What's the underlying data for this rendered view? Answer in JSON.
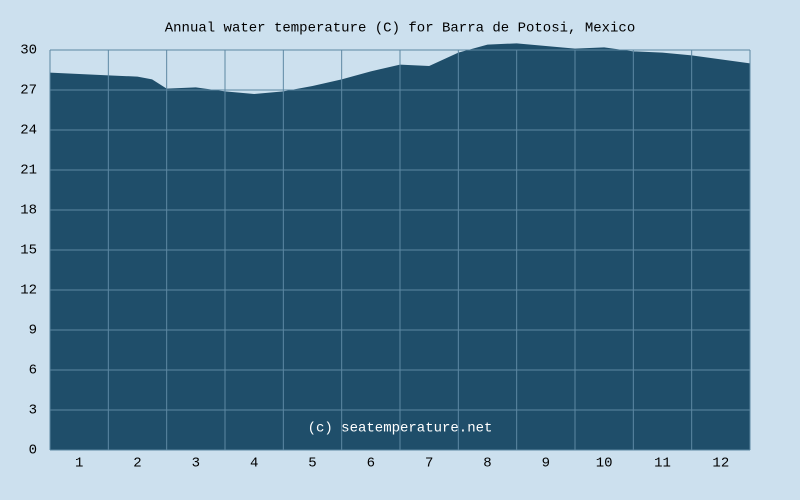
{
  "chart_data": {
    "type": "area",
    "title": "Annual water temperature (C) for Barra de Potosi, Mexico",
    "watermark": "(c) seatemperature.net",
    "categories": [
      "1",
      "2",
      "3",
      "4",
      "5",
      "6",
      "7",
      "8",
      "9",
      "10",
      "11",
      "12"
    ],
    "x": [
      0,
      0.5,
      1,
      1.5,
      1.75,
      2,
      2.5,
      3,
      3.5,
      4,
      4.5,
      5,
      5.5,
      6,
      6.5,
      7,
      7.5,
      8,
      8.5,
      9,
      9.5,
      10,
      10.5,
      11,
      11.5,
      12
    ],
    "values": [
      28.3,
      28.2,
      28.1,
      28.0,
      27.8,
      27.1,
      27.2,
      26.9,
      26.7,
      26.9,
      27.3,
      27.8,
      28.4,
      28.9,
      28.8,
      29.8,
      30.4,
      30.5,
      30.3,
      30.1,
      30.2,
      29.9,
      29.8,
      29.6,
      29.3,
      29.0
    ],
    "color": "#1f4e6a",
    "xlim": [
      0,
      12
    ],
    "ylim": [
      0,
      30
    ],
    "yticks": [
      0,
      3,
      6,
      9,
      12,
      15,
      18,
      21,
      24,
      27,
      30
    ],
    "grid": true
  }
}
